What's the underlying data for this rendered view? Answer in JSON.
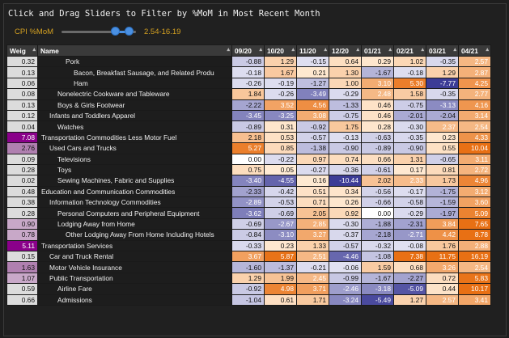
{
  "title": "Click and Drag Sliders to Filter by %MoM in Most Recent Month",
  "slider": {
    "label": "CPI %MoM",
    "value_text": "2.54-16.19",
    "range_fraction": [
      0.72,
      0.9
    ]
  },
  "headers": [
    "Weig",
    "Name",
    "09/20",
    "10/20",
    "11/20",
    "12/20",
    "01/21",
    "02/21",
    "03/21",
    "04/21"
  ],
  "colors": {
    "text_light": "#ffffff",
    "text_dark": "#111111",
    "weight_default": "#dcdcdc",
    "weight_highlight": "#c8a8c8",
    "weight_strong": "#8a008a",
    "accent": "#d4a020",
    "slider": "#4a90e2"
  },
  "rows": [
    {
      "w": "0.32",
      "name": "Pork",
      "level": 3,
      "wc": "#dcdcdc",
      "v": [
        "-0.88",
        "1.29",
        "-0.15",
        "0.64",
        "0.29",
        "1.02",
        "-0.35",
        "2.57"
      ]
    },
    {
      "w": "0.13",
      "name": "Bacon, Breakfast Sausage, and Related Produ",
      "level": 4,
      "wc": "#dcdcdc",
      "v": [
        "-0.18",
        "1.67",
        "0.21",
        "1.30",
        "-1.67",
        "-0.18",
        "1.29",
        "2.87"
      ]
    },
    {
      "w": "0.06",
      "name": "Ham",
      "level": 4,
      "wc": "#dcdcdc",
      "v": [
        "-0.26",
        "-0.19",
        "-1.27",
        "1.00",
        "3.10",
        "5.30",
        "-7.77",
        "4.25"
      ]
    },
    {
      "w": "0.08",
      "name": "Nonelectric Cookware and Tableware",
      "level": 2,
      "wc": "#dcdcdc",
      "v": [
        "1.84",
        "-0.26",
        "-3.49",
        "-0.29",
        "2.48",
        "1.58",
        "-0.35",
        "2.77"
      ]
    },
    {
      "w": "0.13",
      "name": "Boys & Girls Footwear",
      "level": 2,
      "wc": "#dcdcdc",
      "v": [
        "-2.22",
        "3.52",
        "4.56",
        "-1.33",
        "0.46",
        "-0.75",
        "-3.13",
        "4.16"
      ]
    },
    {
      "w": "0.12",
      "name": "Infants and Toddlers Apparel",
      "level": 1,
      "wc": "#dcdcdc",
      "v": [
        "-3.45",
        "-3.25",
        "3.08",
        "-0.75",
        "0.46",
        "-2.01",
        "-2.04",
        "3.14"
      ]
    },
    {
      "w": "0.04",
      "name": "Watches",
      "level": 2,
      "wc": "#dcdcdc",
      "v": [
        "-0.89",
        "0.31",
        "-0.92",
        "1.75",
        "0.28",
        "-0.30",
        "2.37",
        "2.54"
      ]
    },
    {
      "w": "7.08",
      "name": "Transportation Commodities Less Motor Fuel",
      "level": 0,
      "wc": "#8a008a",
      "v": [
        "2.18",
        "0.53",
        "-0.57",
        "-0.13",
        "-0.63",
        "-0.35",
        "0.23",
        "4.33"
      ]
    },
    {
      "w": "2.76",
      "name": "Used Cars and Trucks",
      "level": 1,
      "wc": "#b080b0",
      "v": [
        "5.27",
        "0.85",
        "-1.38",
        "-0.90",
        "-0.89",
        "-0.90",
        "0.55",
        "10.04"
      ]
    },
    {
      "w": "0.09",
      "name": "Televisions",
      "level": 2,
      "wc": "#dcdcdc",
      "v": [
        "0.00",
        "-0.22",
        "0.97",
        "0.74",
        "0.66",
        "1.31",
        "-0.65",
        "3.11"
      ]
    },
    {
      "w": "0.28",
      "name": "Toys",
      "level": 2,
      "wc": "#dcdcdc",
      "v": [
        "0.75",
        "0.05",
        "-0.27",
        "-0.36",
        "-0.61",
        "0.17",
        "0.81",
        "2.72"
      ]
    },
    {
      "w": "0.02",
      "name": "Sewing Machines, Fabric and Supplies",
      "level": 2,
      "wc": "#dcdcdc",
      "v": [
        "-3.40",
        "-4.55",
        "0.16",
        "-10.44",
        "2.02",
        "2.33",
        "1.73",
        "4.96"
      ]
    },
    {
      "w": "0.48",
      "name": "Education and Communication Commodities",
      "level": 0,
      "wc": "#dcdcdc",
      "v": [
        "-2.33",
        "-0.42",
        "0.51",
        "0.34",
        "-0.56",
        "-0.17",
        "-1.75",
        "3.12"
      ]
    },
    {
      "w": "0.38",
      "name": "Information Technology Commodities",
      "level": 1,
      "wc": "#dcdcdc",
      "v": [
        "-2.89",
        "-0.53",
        "0.71",
        "0.26",
        "-0.66",
        "-0.58",
        "-1.59",
        "3.60"
      ]
    },
    {
      "w": "0.28",
      "name": "Personal Computers and Peripheral Equipment",
      "level": 2,
      "wc": "#dcdcdc",
      "v": [
        "-3.62",
        "-0.69",
        "2.05",
        "0.92",
        "0.00",
        "-0.29",
        "-1.97",
        "5.09"
      ]
    },
    {
      "w": "0.90",
      "name": "Lodging Away from Home",
      "level": 2,
      "wc": "#c8a8c8",
      "v": [
        "-0.69",
        "-2.67",
        "2.85",
        "-0.30",
        "-1.88",
        "-2.31",
        "3.84",
        "7.65"
      ]
    },
    {
      "w": "0.78",
      "name": "Other Lodging Away From Home Including Hotels",
      "level": 3,
      "wc": "#c8a8c8",
      "v": [
        "-0.84",
        "-3.10",
        "3.27",
        "-0.37",
        "-2.18",
        "-2.71",
        "4.42",
        "8.78"
      ]
    },
    {
      "w": "5.11",
      "name": "Transportation Services",
      "level": 0,
      "wc": "#8a008a",
      "v": [
        "-0.33",
        "0.23",
        "1.33",
        "-0.57",
        "-0.32",
        "-0.08",
        "1.76",
        "2.88"
      ]
    },
    {
      "w": "0.15",
      "name": "Car and Truck Rental",
      "level": 1,
      "wc": "#dcdcdc",
      "v": [
        "3.67",
        "5.87",
        "2.51",
        "-4.46",
        "-1.08",
        "7.38",
        "11.75",
        "16.19"
      ]
    },
    {
      "w": "1.63",
      "name": "Motor Vehicle Insurance",
      "level": 1,
      "wc": "#b080b0",
      "v": [
        "-1.60",
        "-1.37",
        "-0.21",
        "-0.06",
        "1.59",
        "0.68",
        "3.26",
        "2.54"
      ]
    },
    {
      "w": "1.07",
      "name": "Public Transportation",
      "level": 1,
      "wc": "#c8a8c8",
      "v": [
        "1.29",
        "1.99",
        "2.45",
        "-0.99",
        "-1.67",
        "-2.27",
        "0.72",
        "5.83"
      ]
    },
    {
      "w": "0.59",
      "name": "Airline Fare",
      "level": 2,
      "wc": "#dcdcdc",
      "v": [
        "-0.92",
        "4.98",
        "3.71",
        "-2.46",
        "-3.18",
        "-5.09",
        "0.44",
        "10.17"
      ]
    },
    {
      "w": "0.66",
      "name": "Admissions",
      "level": 2,
      "wc": "#dcdcdc",
      "v": [
        "-1.04",
        "0.61",
        "1.71",
        "-3.24",
        "-5.49",
        "1.27",
        "2.57",
        "3.41"
      ]
    }
  ]
}
